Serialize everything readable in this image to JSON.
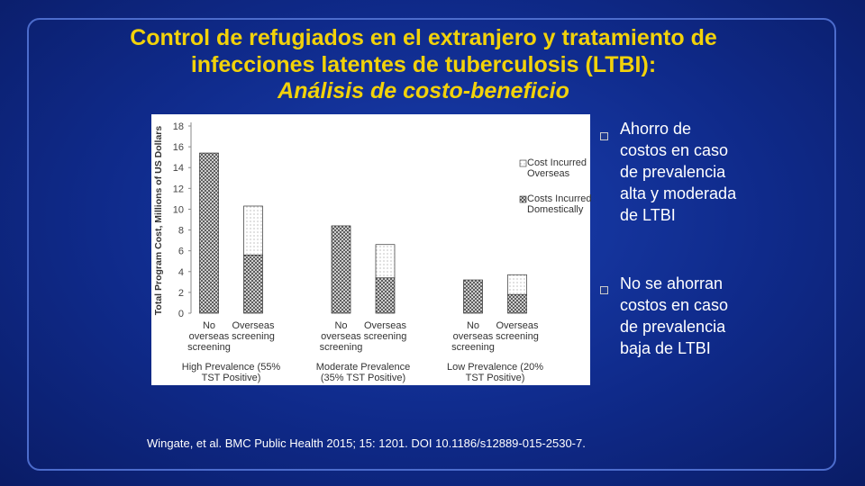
{
  "title_lines": [
    "Control de refugiados en el extranjero y tratamiento de",
    "infecciones latentes de tuberculosis (LTBI):",
    "Análisis de costo-beneficio"
  ],
  "bullets": [
    "Ahorro de costos en caso de prevalencia alta y moderada de LTBI",
    "No se ahorran costos en caso de prevalencia baja de LTBI"
  ],
  "citation": "Wingate, et al.  BMC Public Health 2015; 15: 1201. DOI 10.1186/s12889-015-2530-7.",
  "chart_data": {
    "type": "stacked_bar",
    "y_label": "Total Program Cost, Millions of US Dollars",
    "groups": [
      "High Prevalence (55% TST Positive)",
      "Moderate Prevalence (35% TST Positive)",
      "Low Prevalence (20% TST Positive)"
    ],
    "categories": [
      "No overseas screening",
      "Overseas screening",
      "No overseas screening",
      "Overseas screening",
      "No overseas screening",
      "Overseas screening"
    ],
    "series": [
      {
        "name": "Costs Incurred Domestically",
        "color": "#555555",
        "values": [
          15.4,
          5.6,
          8.4,
          3.4,
          3.2,
          1.8
        ]
      },
      {
        "name": "Cost Incurred Overseas",
        "color": "#9a9a9a",
        "values": [
          0,
          4.7,
          0,
          3.2,
          0,
          1.9
        ]
      }
    ],
    "ylim": [
      0,
      18
    ],
    "yticks": [
      0,
      2,
      4,
      6,
      8,
      10,
      12,
      14,
      16,
      18
    ]
  }
}
